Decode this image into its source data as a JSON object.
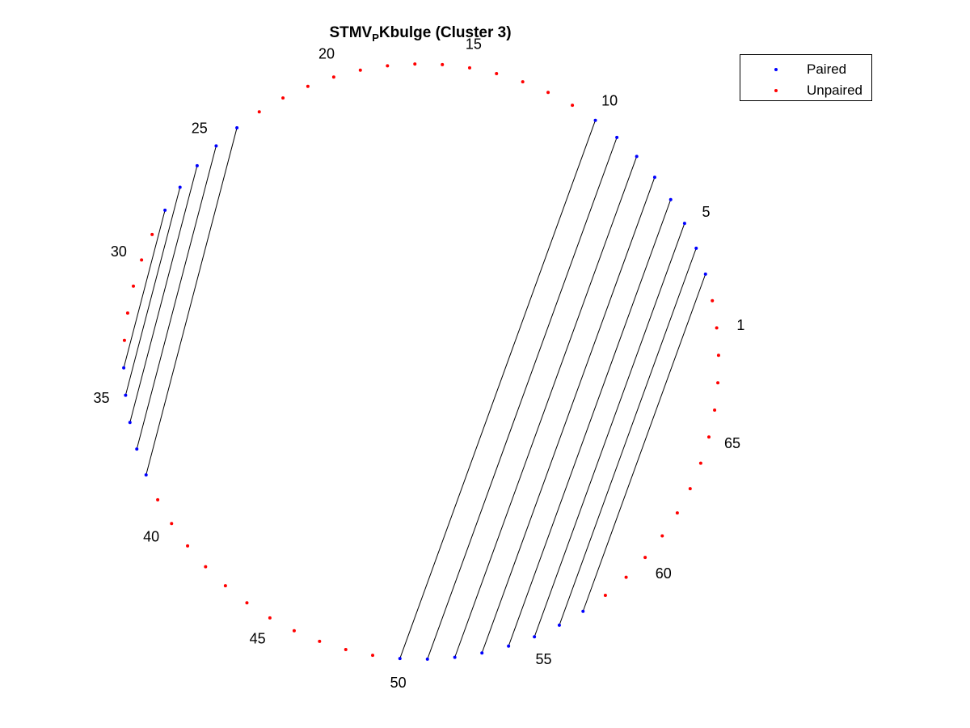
{
  "chart_data": {
    "type": "arc-diagram",
    "title_main": "STMV",
    "title_sub": "P",
    "title_rest": "Kbulge (Cluster 3)",
    "n_positions": 68,
    "position_labels": [
      1,
      5,
      10,
      15,
      20,
      25,
      30,
      35,
      40,
      45,
      50,
      55,
      60,
      65
    ],
    "pairs": [
      [
        3,
        57
      ],
      [
        4,
        56
      ],
      [
        5,
        55
      ],
      [
        6,
        54
      ],
      [
        7,
        53
      ],
      [
        8,
        52
      ],
      [
        9,
        51
      ],
      [
        10,
        50
      ],
      [
        24,
        38
      ],
      [
        25,
        37
      ],
      [
        26,
        36
      ],
      [
        27,
        35
      ],
      [
        28,
        34
      ]
    ],
    "legend": {
      "placement": "top-right",
      "entries": [
        "Paired",
        "Unpaired"
      ]
    },
    "colors": {
      "paired": "#0000ff",
      "unpaired": "#ff0000",
      "line": "#000000"
    }
  }
}
